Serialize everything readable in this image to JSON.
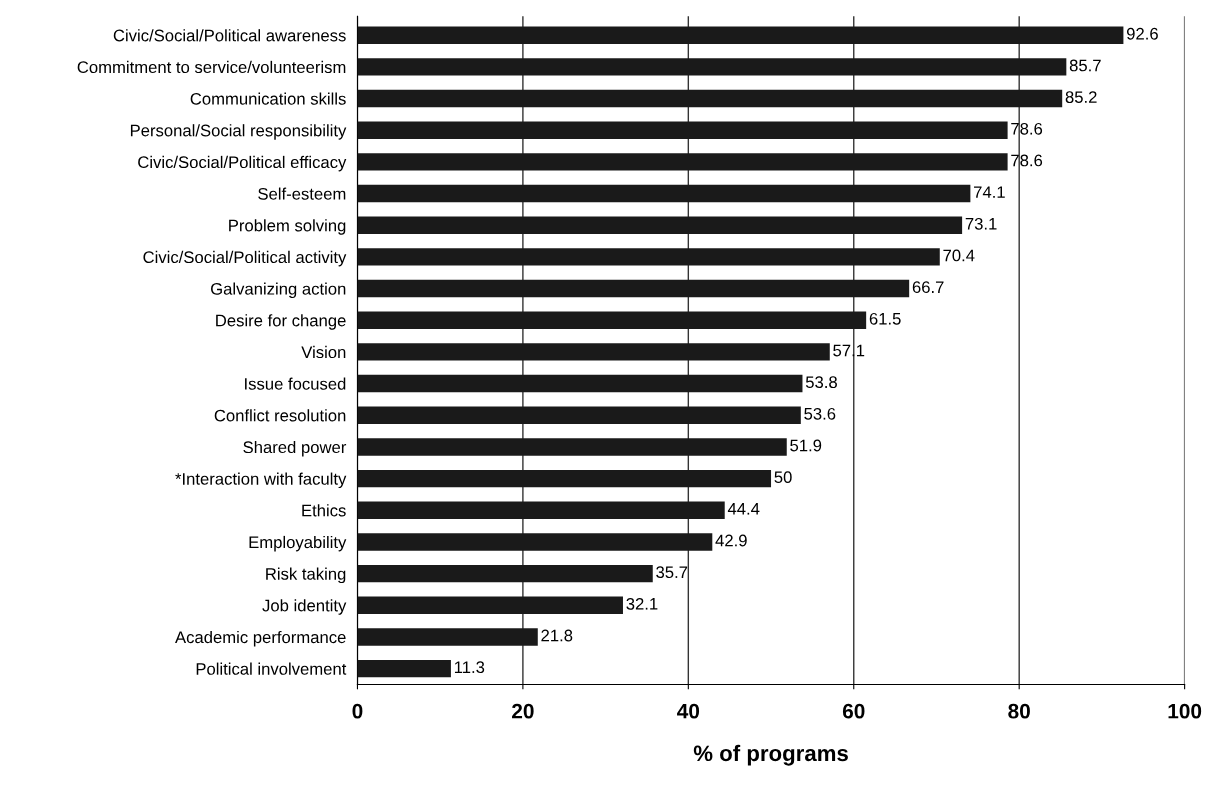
{
  "chart_data": {
    "type": "bar",
    "orientation": "horizontal",
    "xlabel": "% of programs",
    "categories": [
      "Civic/Social/Political awareness",
      "Commitment to service/volunteerism",
      "Communication skills",
      "Personal/Social responsibility",
      "Civic/Social/Political efficacy",
      "Self-esteem",
      "Problem solving",
      "Civic/Social/Political activity",
      "Galvanizing action",
      "Desire for change",
      "Vision",
      "Issue focused",
      "Conflict resolution",
      "Shared power",
      "*Interaction with faculty",
      "Ethics",
      "Employability",
      "Risk taking",
      "Job identity",
      "Academic performance",
      "Political involvement"
    ],
    "values": [
      92.6,
      85.7,
      85.2,
      78.6,
      78.6,
      74.1,
      73.1,
      70.4,
      66.7,
      61.5,
      57.1,
      53.8,
      53.6,
      51.9,
      50,
      44.4,
      42.9,
      35.7,
      32.1,
      21.8,
      11.3
    ],
    "color": "#1a1a1a",
    "xlim": [
      0,
      100
    ],
    "xticks": [
      0,
      20,
      40,
      60,
      80,
      100
    ],
    "grid": "x",
    "data_labels": true
  }
}
